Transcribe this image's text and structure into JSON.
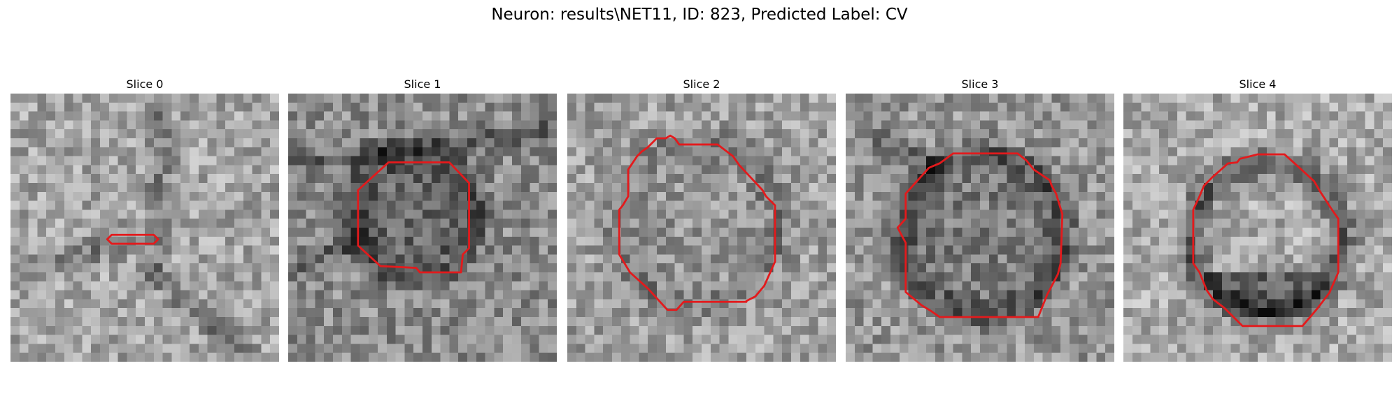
{
  "figure": {
    "title": "Neuron: results\\NET11, ID: 823, Predicted Label: CV"
  },
  "colors": {
    "contour": "#e31a1c",
    "image_colormap": "gray"
  },
  "panels": [
    {
      "title": "Slice 0"
    },
    {
      "title": "Slice 1"
    },
    {
      "title": "Slice 2"
    },
    {
      "title": "Slice 3"
    },
    {
      "title": "Slice 4"
    }
  ]
}
